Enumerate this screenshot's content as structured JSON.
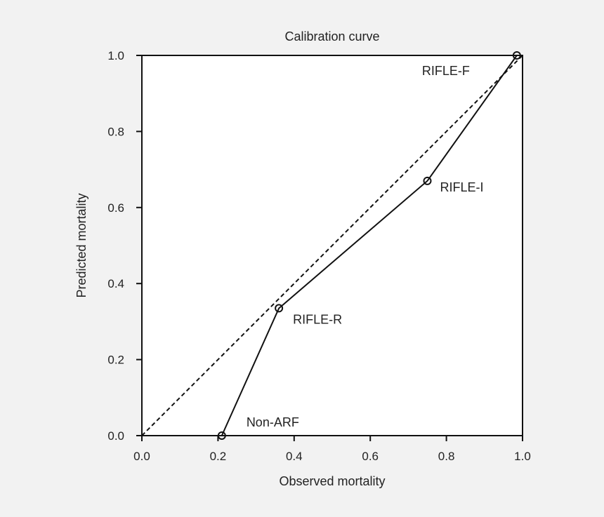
{
  "chart_data": {
    "type": "line",
    "title": "Calibration curve",
    "xlabel": "Observed mortality",
    "ylabel": "Predicted mortality",
    "xlim": [
      0.0,
      1.0
    ],
    "ylim": [
      0.0,
      1.0
    ],
    "xticks": [
      "0.0",
      "0.2",
      "0.4",
      "0.6",
      "0.8",
      "1.0"
    ],
    "yticks": [
      "0.0",
      "0.2",
      "0.4",
      "0.6",
      "0.8",
      "1.0"
    ],
    "grid": false,
    "series": [
      {
        "style": "solid-with-circle-markers",
        "points": [
          {
            "label": "Non-ARF",
            "x": 0.21,
            "y": 0.0
          },
          {
            "label": "RIFLE-R",
            "x": 0.36,
            "y": 0.335
          },
          {
            "label": "RIFLE-I",
            "x": 0.75,
            "y": 0.67
          },
          {
            "label": "RIFLE-F",
            "x": 0.985,
            "y": 1.0
          }
        ]
      },
      {
        "style": "dashed",
        "points": [
          {
            "x": 0.0,
            "y": 0.0
          },
          {
            "x": 1.0,
            "y": 1.0
          }
        ]
      }
    ]
  }
}
